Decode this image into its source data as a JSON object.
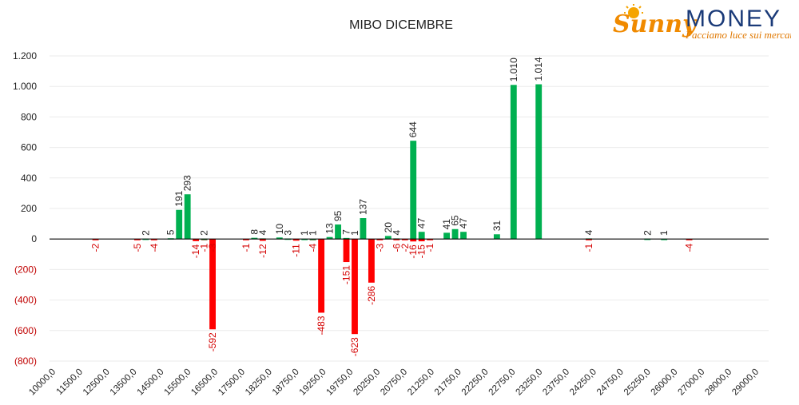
{
  "brand": {
    "name_part1": "Sunny",
    "name_part2": "MONEY",
    "tagline": "Facciamo luce sui mercati",
    "primary_color": "#1a3a78",
    "accent_color": "#f08a00"
  },
  "chart_data": {
    "type": "bar",
    "title": "MIBO DICEMBRE",
    "xlabel": "",
    "ylabel": "",
    "ylim": [
      -800,
      1200
    ],
    "yticks": [
      {
        "value": 1200,
        "label": "1.200"
      },
      {
        "value": 1000,
        "label": "1.000"
      },
      {
        "value": 800,
        "label": "800"
      },
      {
        "value": 600,
        "label": "600"
      },
      {
        "value": 400,
        "label": "400"
      },
      {
        "value": 200,
        "label": "200"
      },
      {
        "value": 0,
        "label": "0"
      },
      {
        "value": -200,
        "label": "(200)"
      },
      {
        "value": -400,
        "label": "(400)"
      },
      {
        "value": -600,
        "label": "(600)"
      },
      {
        "value": -800,
        "label": "(800)"
      }
    ],
    "category_tick_labels": [
      "10000,0",
      "11500,0",
      "12500,0",
      "13500,0",
      "14500,0",
      "15500,0",
      "16500,0",
      "17500,0",
      "18250,0",
      "18750,0",
      "19250,0",
      "19750,0",
      "20250,0",
      "20750,0",
      "21250,0",
      "21750,0",
      "22250,0",
      "22750,0",
      "23250,0",
      "23750,0",
      "24250,0",
      "24750,0",
      "25250,0",
      "26000,0",
      "27000,0",
      "28000,0",
      "29000,0"
    ],
    "grid": true,
    "colors": {
      "positive": "#00b050",
      "negative": "#ff0000"
    },
    "series": [
      {
        "values": [
          0,
          0,
          0,
          0,
          0,
          -2,
          0,
          0,
          0,
          0,
          -5,
          2,
          -4,
          0,
          5,
          0,
          0,
          0,
          -1,
          -3,
          0,
          0,
          0,
          -1,
          0,
          4,
          0,
          10,
          0,
          0,
          0,
          -4,
          0,
          0,
          0,
          -151,
          1,
          0,
          0,
          0,
          0,
          4,
          0,
          -16,
          47,
          0,
          0,
          41,
          65,
          47,
          0,
          0,
          0,
          31,
          0,
          1010,
          0,
          0,
          1014,
          0,
          0,
          0,
          0,
          0,
          4,
          0,
          0,
          0,
          0,
          0,
          0,
          2,
          0,
          1,
          0,
          0,
          0,
          0,
          0,
          0,
          0,
          0,
          0,
          0,
          0,
          0
        ]
      },
      {
        "values": [
          0,
          0,
          0,
          0,
          0,
          0,
          0,
          0,
          0,
          0,
          0,
          0,
          0,
          0,
          0,
          191,
          293,
          -14,
          2,
          -592,
          0,
          0,
          0,
          0,
          8,
          -12,
          0,
          0,
          3,
          -11,
          1,
          1,
          -483,
          13,
          95,
          7,
          -623,
          137,
          -286,
          -3,
          20,
          -6,
          -2,
          644,
          -15,
          -1,
          0,
          0,
          0,
          0,
          0,
          0,
          0,
          0,
          0,
          0,
          0,
          0,
          0,
          0,
          0,
          0,
          0,
          0,
          -1,
          0,
          0,
          0,
          0,
          0,
          0,
          0,
          0,
          0,
          0,
          0,
          -4,
          0,
          0,
          0,
          0,
          0,
          0,
          0,
          0
        ]
      }
    ]
  }
}
